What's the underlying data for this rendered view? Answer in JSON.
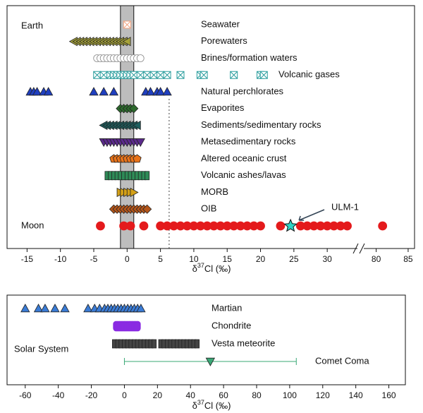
{
  "chart_data": [
    {
      "type": "scatter",
      "group_labels": [
        "Earth",
        "Moon"
      ],
      "xlabel": [
        "δ",
        "37",
        "Cl (‰)"
      ],
      "xlim": [
        -18,
        34
      ],
      "xticks": [
        -15,
        -10,
        -5,
        0,
        5,
        10,
        15,
        20,
        25,
        30
      ],
      "xbreak_lim": [
        78.5,
        86
      ],
      "xbreak_ticks": [
        80,
        85
      ],
      "shaded_range": [
        -1,
        1
      ],
      "reference_x": 6.3,
      "series": [
        {
          "name": "Seawater",
          "color": "#f4a582",
          "marker": "square-x",
          "values": [
            0
          ]
        },
        {
          "name": "Porewaters",
          "color": "#a6a23a",
          "marker": "tri-left",
          "values": [
            -8,
            -7.5,
            -7,
            -6.5,
            -6,
            -5.5,
            -5,
            -4.5,
            -4,
            -3.5,
            -3,
            -2.5,
            -2,
            -1.5,
            -1,
            -0.5,
            0
          ]
        },
        {
          "name": "Brines/formation waters",
          "color": "#888888",
          "marker": "open-circle",
          "values": [
            -4.5,
            -4,
            -3.5,
            -3,
            -2.5,
            -2,
            -1.5,
            -1,
            -0.5,
            0,
            0.5,
            1,
            1.5,
            2
          ]
        },
        {
          "name": "Volcanic gases",
          "color": "#2a9d9d",
          "marker": "square-x",
          "values": [
            -4.5,
            -3.5,
            -2.5,
            -2,
            -1.5,
            -1,
            -0.5,
            0,
            0.5,
            1,
            2,
            3,
            4,
            5,
            6,
            8,
            11,
            11.5,
            16,
            20,
            20.5
          ]
        },
        {
          "name": "Natural perchlorates",
          "color": "#1f3fbf",
          "marker": "tri-up",
          "values": [
            -14.5,
            -14,
            -13.5,
            -12.5,
            -11.8,
            -5,
            -3.5,
            -2,
            2.8,
            3.5,
            4.5,
            5,
            6
          ]
        },
        {
          "name": "Evaporites",
          "color": "#2d6a2d",
          "marker": "diamond",
          "values": [
            -1,
            -0.5,
            0,
            0.5,
            1
          ]
        },
        {
          "name": "Sediments/sedimentary rocks",
          "color": "#1f5f5f",
          "marker": "tri-left",
          "values": [
            -3.5,
            -3,
            -2.5,
            -2,
            -1.5,
            -1,
            -0.5,
            0,
            0.5,
            1,
            1.5
          ]
        },
        {
          "name": "Metasedimentary rocks",
          "color": "#5b2a8c",
          "marker": "tri-down",
          "values": [
            -3.5,
            -3,
            -2.5,
            -2,
            -1.5,
            -1,
            -0.5,
            0,
            0.5,
            1,
            1.5,
            2
          ]
        },
        {
          "name": "Altered oceanic crust",
          "color": "#e8731a",
          "marker": "pentagon",
          "values": [
            -2,
            -1.5,
            -1,
            -0.5,
            0,
            0.5,
            1,
            1.5
          ]
        },
        {
          "name": "Volcanic ashes/lavas",
          "color": "#2e8b57",
          "marker": "rect",
          "values": [
            -3,
            -2.5,
            -2,
            -1.5,
            -1,
            -0.5,
            0,
            0.5,
            1,
            1.5,
            2,
            2.5,
            3
          ]
        },
        {
          "name": "MORB",
          "color": "#d4a017",
          "marker": "tri-right",
          "values": [
            -1,
            -0.5,
            0,
            0.5,
            1
          ]
        },
        {
          "name": "OIB",
          "color": "#b5561a",
          "marker": "diamond",
          "values": [
            -2,
            -1.5,
            -1,
            -0.5,
            0,
            0.5,
            1,
            1.5,
            2,
            2.5,
            3
          ]
        },
        {
          "name": "Moon",
          "color": "#e41a1c",
          "marker": "circle",
          "values": [
            -4,
            -0.5,
            0.5,
            2.5,
            5,
            6,
            7,
            8,
            9,
            10,
            11,
            12,
            13,
            14,
            15,
            16,
            17,
            18,
            19,
            20,
            23,
            26,
            27,
            28,
            29,
            30,
            31,
            32,
            33,
            81
          ]
        }
      ],
      "highlight": {
        "name": "ULM-1",
        "color": "#2ed3c6",
        "value": 24.5
      }
    },
    {
      "type": "scatter",
      "group_labels": [
        "Solar System"
      ],
      "xlabel": [
        "δ",
        "37",
        "Cl (‰)"
      ],
      "xlim": [
        -71,
        170
      ],
      "xticks": [
        -60,
        -40,
        -20,
        0,
        20,
        40,
        60,
        80,
        100,
        120,
        140,
        160
      ],
      "series": [
        {
          "name": "Martian",
          "color": "#3a7bd5",
          "marker": "tri-up",
          "values": [
            -60,
            -52,
            -48,
            -42,
            -36,
            -22,
            -18,
            -15,
            -12,
            -10,
            -8,
            -6,
            -4,
            -2,
            0,
            2,
            4,
            6,
            8,
            10
          ]
        },
        {
          "name": "Chondrite",
          "color": "#8a2be2",
          "marker": "pill",
          "values": [
            -5,
            -4,
            -3,
            -2,
            -1,
            0,
            1,
            2,
            3,
            4,
            5,
            6,
            7,
            8
          ]
        },
        {
          "name": "Vesta meteorite",
          "color": "#444444",
          "marker": "rect",
          "values": [
            -6,
            -4,
            -2,
            0,
            2,
            4,
            6,
            8,
            10,
            12,
            14,
            16,
            18,
            22,
            24,
            26,
            28,
            30,
            32,
            34,
            36,
            38,
            40,
            42,
            44
          ]
        },
        {
          "name": "Comet Coma",
          "color": "#3aa876",
          "marker": "tri-down",
          "values": [
            52
          ],
          "range": [
            0,
            104
          ]
        }
      ]
    }
  ]
}
